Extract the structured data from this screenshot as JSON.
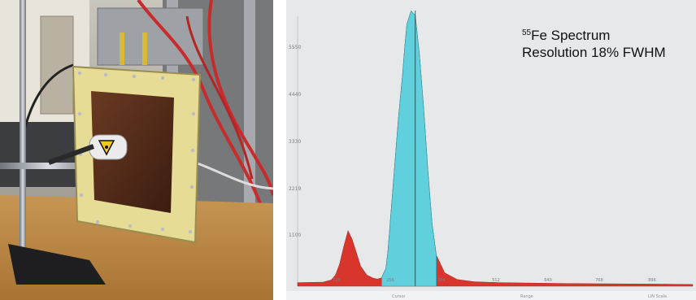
{
  "caption": {
    "isotope_mass": "55",
    "title_rest": "Fe Spectrum",
    "resolution": "Resolution 18% FWHM"
  },
  "colors": {
    "background": "#e6e8ea",
    "counts": "#d8362c",
    "selected_region": "#5fd0dc",
    "frame": "#e7dc96",
    "window": "#5a2a16"
  },
  "footer": {
    "cursor": "Cursor",
    "range": "Range",
    "scale": "LIN Scale"
  },
  "chart_data": {
    "type": "area",
    "ylabels": [
      "5550",
      "4440",
      "3330",
      "2219",
      "1100"
    ],
    "xlabels": [
      "128",
      "256",
      "384",
      "512",
      "640",
      "768",
      "896"
    ],
    "x": [
      0,
      60,
      80,
      90,
      100,
      110,
      120,
      130,
      140,
      150,
      165,
      180,
      190,
      200,
      210,
      215,
      220,
      230,
      240,
      250,
      255,
      260,
      270,
      280,
      290,
      300,
      310,
      320,
      330,
      350,
      380,
      420,
      480,
      560,
      640,
      720,
      800,
      880,
      940
    ],
    "y": [
      80,
      90,
      140,
      250,
      500,
      900,
      1250,
      1050,
      750,
      450,
      250,
      180,
      160,
      190,
      400,
      800,
      1400,
      2600,
      3800,
      4800,
      5400,
      5900,
      6200,
      6100,
      5200,
      4000,
      2600,
      1400,
      700,
      300,
      150,
      100,
      80,
      70,
      60,
      55,
      50,
      45,
      40
    ],
    "ylim": [
      0,
      6300
    ],
    "xlim": [
      0,
      940
    ],
    "selected_range": [
      200,
      330
    ],
    "cursor_x": 280,
    "grid": false
  }
}
